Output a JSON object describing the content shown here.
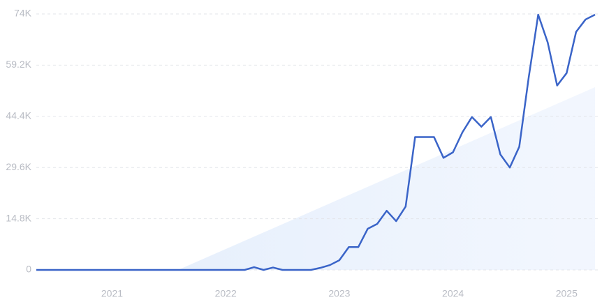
{
  "chart_data": {
    "type": "line",
    "categories": [
      null,
      null,
      null,
      null,
      null,
      null,
      null,
      null,
      "2021",
      null,
      null,
      null,
      null,
      null,
      null,
      null,
      null,
      null,
      null,
      null,
      "2022",
      null,
      null,
      null,
      null,
      null,
      null,
      null,
      null,
      null,
      null,
      null,
      "2023",
      null,
      null,
      null,
      null,
      null,
      null,
      null,
      null,
      null,
      null,
      null,
      "2024",
      null,
      null,
      null,
      null,
      null,
      null,
      null,
      null,
      null,
      null,
      null,
      "2025",
      null,
      null,
      null
    ],
    "values": [
      0,
      0,
      0,
      0,
      0,
      0,
      0,
      0,
      0,
      0,
      0,
      0,
      0,
      0,
      0,
      0,
      0,
      0,
      0,
      0,
      0,
      0,
      0,
      800,
      0,
      700,
      0,
      0,
      0,
      0,
      600,
      1400,
      2800,
      6600,
      6600,
      11900,
      13300,
      17100,
      14100,
      18300,
      38400,
      38400,
      38400,
      32400,
      34000,
      39800,
      44200,
      41400,
      44200,
      33400,
      29600,
      35600,
      55700,
      73800,
      65800,
      53300,
      56900,
      68800,
      72400,
      73800
    ],
    "color": "#3a64c8",
    "ylim": [
      0,
      74000
    ],
    "yticks": [
      0,
      {
        "value": 14800,
        "label": "14.8K"
      },
      {
        "value": 29600,
        "label": "29.6K"
      },
      {
        "value": 44400,
        "label": "44.4K"
      },
      {
        "value": 59200,
        "label": "59.2K"
      },
      {
        "value": 74000,
        "label": "74K"
      }
    ],
    "grid": true
  }
}
